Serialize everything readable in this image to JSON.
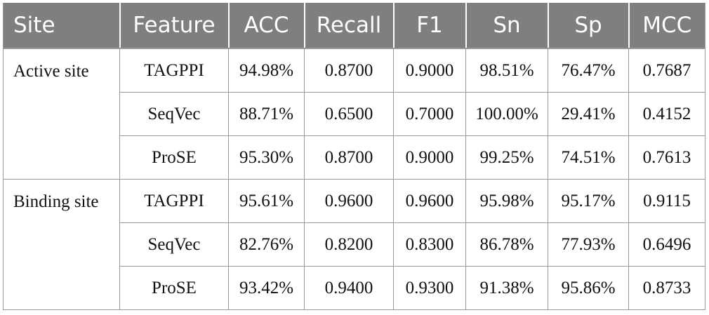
{
  "table": {
    "headers": [
      "Site",
      "Feature",
      "ACC",
      "Recall",
      "F1",
      "Sn",
      "Sp",
      "MCC"
    ],
    "groups": [
      {
        "site": "Active site",
        "rows": [
          [
            "TAGPPI",
            "94.98%",
            "0.8700",
            "0.9000",
            "98.51%",
            "76.47%",
            "0.7687"
          ],
          [
            "SeqVec",
            "88.71%",
            "0.6500",
            "0.7000",
            "100.00%",
            "29.41%",
            "0.4152"
          ],
          [
            "ProSE",
            "95.30%",
            "0.8700",
            "0.9000",
            "99.25%",
            "74.51%",
            "0.7613"
          ]
        ]
      },
      {
        "site": "Binding site",
        "rows": [
          [
            "TAGPPI",
            "95.61%",
            "0.9600",
            "0.9600",
            "95.98%",
            "95.17%",
            "0.9115"
          ],
          [
            "SeqVec",
            "82.76%",
            "0.8200",
            "0.8300",
            "86.78%",
            "77.93%",
            "0.6496"
          ],
          [
            "ProSE",
            "93.42%",
            "0.9400",
            "0.9300",
            "91.38%",
            "95.86%",
            "0.8733"
          ]
        ]
      }
    ]
  }
}
